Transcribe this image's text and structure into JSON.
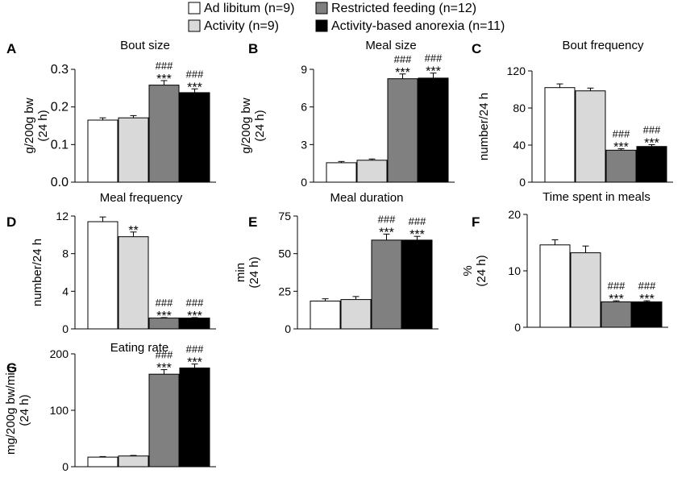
{
  "legend": {
    "entries": [
      {
        "label": "Ad libitum (n=9)",
        "color": "#ffffff"
      },
      {
        "label": "Activity (n=9)",
        "color": "#d9d9d9"
      },
      {
        "label": "Restricted feeding (n=12)",
        "color": "#808080"
      },
      {
        "label": "Activity-based anorexia (n=11)",
        "color": "#000000"
      }
    ]
  },
  "chart_data": [
    {
      "type": "bar",
      "panel": "A",
      "title": "Bout size",
      "ylabel": [
        "g/200g bw",
        "(24 h)"
      ],
      "categories": [
        "Ad libitum (n=9)",
        "Activity (n=9)",
        "Restricted feeding (n=12)",
        "Activity-based anorexia (n=11)"
      ],
      "values": [
        0.165,
        0.171,
        0.258,
        0.238
      ],
      "errors": [
        0.006,
        0.006,
        0.012,
        0.01
      ],
      "ylim": [
        0,
        0.3
      ],
      "yticks": [
        0,
        0.1,
        0.2,
        0.3
      ],
      "ytick_labels": [
        "0.0",
        "0.1",
        "0.2",
        "0.3"
      ],
      "annotations": [
        {
          "bar": 2,
          "lines": [
            "###",
            "***"
          ]
        },
        {
          "bar": 3,
          "lines": [
            "###",
            "***"
          ]
        }
      ]
    },
    {
      "type": "bar",
      "panel": "B",
      "title": "Meal size",
      "ylabel": [
        "g/200g bw",
        "(24 h)"
      ],
      "categories": [
        "Ad libitum (n=9)",
        "Activity (n=9)",
        "Restricted feeding (n=12)",
        "Activity-based anorexia (n=11)"
      ],
      "values": [
        1.55,
        1.75,
        8.25,
        8.3
      ],
      "errors": [
        0.1,
        0.1,
        0.38,
        0.4
      ],
      "ylim": [
        0,
        9
      ],
      "yticks": [
        0,
        3,
        6,
        9
      ],
      "ytick_labels": [
        "0",
        "3",
        "6",
        "9"
      ],
      "annotations": [
        {
          "bar": 2,
          "lines": [
            "###",
            "***"
          ]
        },
        {
          "bar": 3,
          "lines": [
            "###",
            "***"
          ]
        }
      ]
    },
    {
      "type": "bar",
      "panel": "C",
      "title": "Bout frequency",
      "ylabel": [
        "number/24 h"
      ],
      "categories": [
        "Ad libitum (n=9)",
        "Activity (n=9)",
        "Restricted feeding (n=12)",
        "Activity-based anorexia (n=11)"
      ],
      "values": [
        102,
        98.5,
        34.5,
        38.5
      ],
      "errors": [
        4,
        3,
        1.5,
        2
      ],
      "ylim": [
        0,
        120
      ],
      "yticks": [
        0,
        40,
        80,
        120
      ],
      "ytick_labels": [
        "0",
        "40",
        "80",
        "120"
      ],
      "annotations": [
        {
          "bar": 2,
          "lines": [
            "###",
            "***"
          ]
        },
        {
          "bar": 3,
          "lines": [
            "###",
            "***"
          ]
        }
      ]
    },
    {
      "type": "bar",
      "panel": "D",
      "title": "Meal frequency",
      "ylabel": [
        "number/24 h"
      ],
      "categories": [
        "Ad libitum (n=9)",
        "Activity (n=9)",
        "Restricted feeding (n=12)",
        "Activity-based anorexia (n=11)"
      ],
      "values": [
        11.4,
        9.8,
        1.15,
        1.15
      ],
      "errors": [
        0.5,
        0.5,
        0.05,
        0.05
      ],
      "ylim": [
        0,
        12
      ],
      "yticks": [
        0,
        4,
        8,
        12
      ],
      "ytick_labels": [
        "0",
        "4",
        "8",
        "12"
      ],
      "annotations": [
        {
          "bar": 1,
          "lines": [
            "**"
          ]
        },
        {
          "bar": 2,
          "lines": [
            "###",
            "***"
          ]
        },
        {
          "bar": 3,
          "lines": [
            "###",
            "***"
          ]
        }
      ]
    },
    {
      "type": "bar",
      "panel": "E",
      "title": "Meal duration",
      "ylabel": [
        "min",
        "(24 h)"
      ],
      "categories": [
        "Ad libitum (n=9)",
        "Activity (n=9)",
        "Restricted feeding (n=12)",
        "Activity-based anorexia (n=11)"
      ],
      "values": [
        18.5,
        19.5,
        59,
        59
      ],
      "errors": [
        1.5,
        2,
        4,
        2.5
      ],
      "ylim": [
        0,
        75
      ],
      "yticks": [
        0,
        25,
        50,
        75
      ],
      "ytick_labels": [
        "0",
        "25",
        "50",
        "75"
      ],
      "annotations": [
        {
          "bar": 2,
          "lines": [
            "###",
            "***"
          ]
        },
        {
          "bar": 3,
          "lines": [
            "###",
            "***"
          ]
        }
      ]
    },
    {
      "type": "bar",
      "panel": "F",
      "title": "Time spent in meals",
      "ylabel": [
        "%",
        "(24 h)"
      ],
      "categories": [
        "Ad libitum (n=9)",
        "Activity (n=9)",
        "Restricted feeding (n=12)",
        "Activity-based anorexia (n=11)"
      ],
      "values": [
        14.6,
        13.2,
        4.5,
        4.5
      ],
      "errors": [
        0.9,
        1.2,
        0.2,
        0.2
      ],
      "ylim": [
        0,
        20
      ],
      "yticks": [
        0,
        10,
        20
      ],
      "ytick_labels": [
        "0",
        "10",
        "20"
      ],
      "annotations": [
        {
          "bar": 2,
          "lines": [
            "###",
            "***"
          ]
        },
        {
          "bar": 3,
          "lines": [
            "###",
            "***"
          ]
        }
      ]
    },
    {
      "type": "bar",
      "panel": "G",
      "title": "Eating rate",
      "ylabel": [
        "mg/200g bw/min",
        "(24 h)"
      ],
      "categories": [
        "Ad libitum (n=9)",
        "Activity (n=9)",
        "Restricted feeding (n=12)",
        "Activity-based anorexia (n=11)"
      ],
      "values": [
        17,
        19,
        164,
        175
      ],
      "errors": [
        1,
        1,
        8,
        7
      ],
      "ylim": [
        0,
        200
      ],
      "yticks": [
        0,
        100,
        200
      ],
      "ytick_labels": [
        "0",
        "100",
        "200"
      ],
      "annotations": [
        {
          "bar": 2,
          "lines": [
            "###",
            "***"
          ]
        },
        {
          "bar": 3,
          "lines": [
            "###",
            "***"
          ]
        }
      ]
    }
  ]
}
